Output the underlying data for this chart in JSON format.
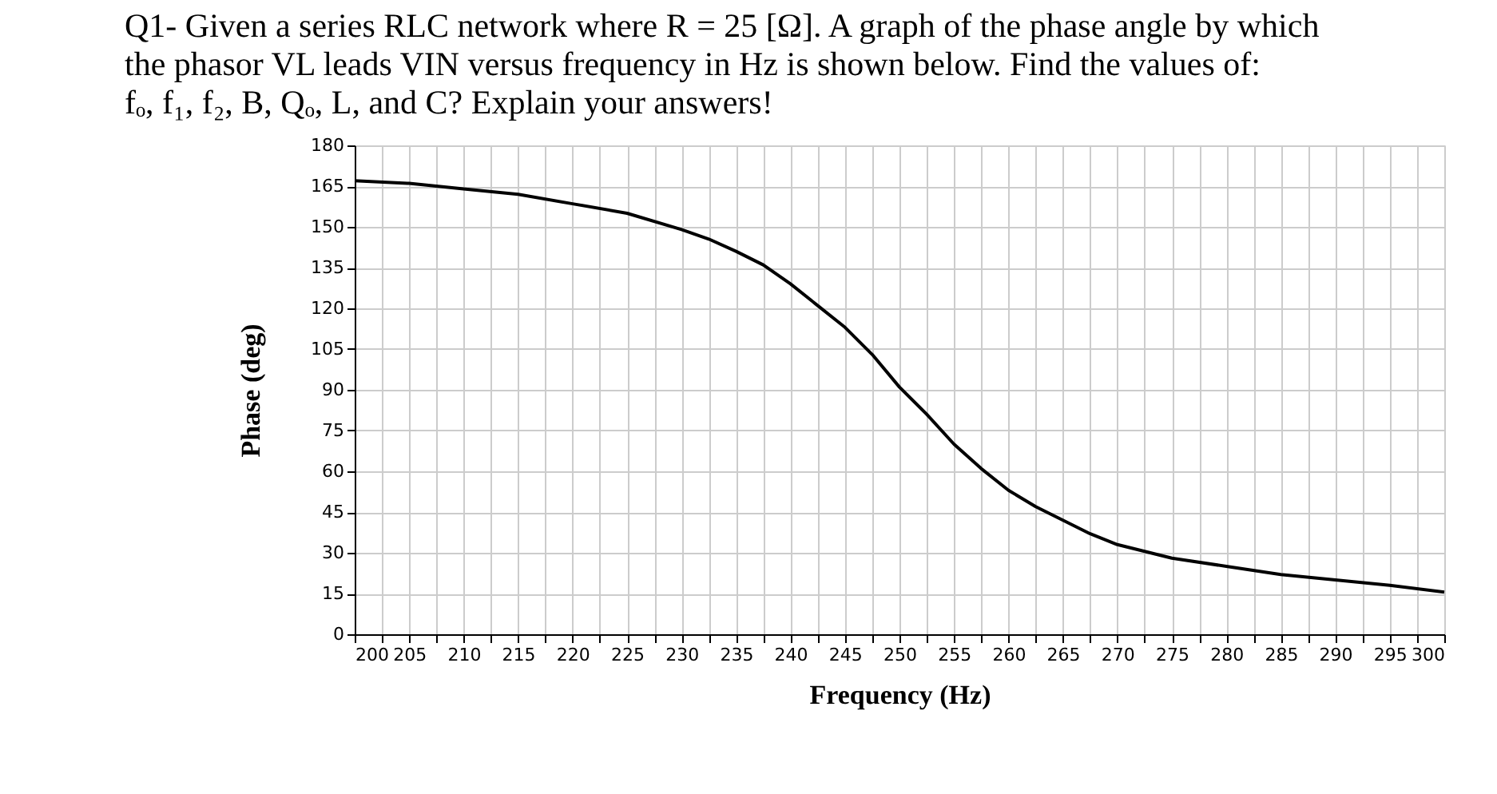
{
  "chart_data": {
    "type": "line",
    "title": "Q1-  Given a series RLC network where R = 25 [Ω]. A graph of the phase angle by which\nthe phasor VL leads VIN versus frequency in Hz is shown below. Find the values of:\nfₒ, f₁, f₂, B, Qₒ, L, and C? Explain your answers!",
    "xlabel": "Frequency (Hz)",
    "ylabel": "Phase (deg)",
    "series": [
      {
        "color": "#000000",
        "x": [
          200,
          205,
          210,
          215,
          220,
          225,
          230,
          232.5,
          235,
          237.5,
          240,
          242.5,
          245,
          247.5,
          250,
          252.5,
          255,
          257.5,
          260,
          262.5,
          265,
          267.5,
          270,
          275,
          280,
          285,
          290,
          295,
          300
        ],
        "values": [
          167,
          166,
          164,
          162,
          158.5,
          155,
          149,
          145.5,
          141,
          136,
          129,
          121,
          113,
          103,
          91,
          81,
          70,
          61,
          53,
          47,
          42,
          37,
          33,
          28,
          25,
          22,
          20,
          18,
          15.5
        ]
      }
    ],
    "xlim": [
      200,
      300
    ],
    "xticks": [
      200,
      {
        "value": 202.5,
        "label": null
      },
      205,
      {
        "value": 207.5,
        "label": null
      },
      210,
      {
        "value": 212.5,
        "label": null
      },
      215,
      {
        "value": 217.5,
        "label": null
      },
      220,
      {
        "value": 222.5,
        "label": null
      },
      225,
      {
        "value": 227.5,
        "label": null
      },
      230,
      {
        "value": 232.5,
        "label": null
      },
      235,
      {
        "value": 237.5,
        "label": null
      },
      240,
      {
        "value": 242.5,
        "label": null
      },
      245,
      {
        "value": 247.5,
        "label": null
      },
      250,
      {
        "value": 252.5,
        "label": null
      },
      255,
      {
        "value": 257.5,
        "label": null
      },
      260,
      {
        "value": 262.5,
        "label": null
      },
      265,
      {
        "value": 267.5,
        "label": null
      },
      270,
      {
        "value": 272.5,
        "label": null
      },
      275,
      {
        "value": 277.5,
        "label": null
      },
      280,
      {
        "value": 282.5,
        "label": null
      },
      285,
      {
        "value": 287.5,
        "label": null
      },
      290,
      {
        "value": 292.5,
        "label": null
      },
      295,
      {
        "value": 297.5,
        "label": null
      },
      300
    ],
    "ylim": [
      0,
      180
    ],
    "yticks": [
      0,
      15,
      30,
      45,
      60,
      75,
      90,
      105,
      120,
      135,
      150,
      165,
      180
    ],
    "grid": true,
    "marker": "none",
    "line_style": "solid",
    "legend": false
  }
}
